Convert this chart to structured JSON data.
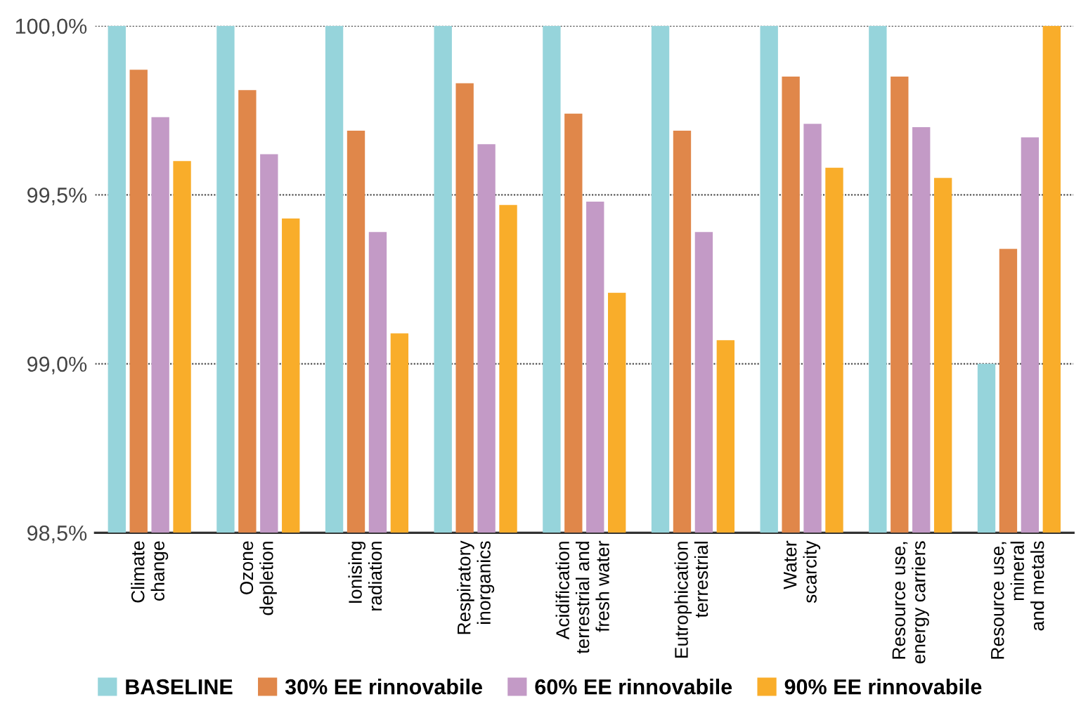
{
  "chart_data": {
    "type": "bar",
    "categories": [
      "Climate\nchange",
      "Ozone\ndepletion",
      "Ionising\nradiation",
      "Respiratory\ninorganics",
      "Acidification\nterrestrial and\nfresh water",
      "Eutrophication\nterrestrial",
      "Water\nscarcity",
      "Resource use,\nenergy carriers",
      "Resource use,\nmineral\nand metals"
    ],
    "series": [
      {
        "name": "BASELINE",
        "color": "#96d4db",
        "values": [
          100.0,
          100.0,
          100.0,
          100.0,
          100.0,
          100.0,
          100.0,
          100.0,
          99.0
        ]
      },
      {
        "name": "30% EE rinnovabile",
        "color": "#e0874a",
        "values": [
          99.87,
          99.81,
          99.69,
          99.83,
          99.74,
          99.69,
          99.85,
          99.85,
          99.34
        ]
      },
      {
        "name": "60% EE rinnovabile",
        "color": "#c39ac6",
        "values": [
          99.73,
          99.62,
          99.39,
          99.65,
          99.48,
          99.39,
          99.71,
          99.7,
          99.67
        ]
      },
      {
        "name": "90% EE rinnovabile",
        "color": "#f9ad2a",
        "values": [
          99.6,
          99.43,
          99.09,
          99.47,
          99.21,
          99.07,
          99.58,
          99.55,
          100.0
        ]
      }
    ],
    "ylim": [
      98.5,
      100.0
    ],
    "yticks": [
      {
        "value": 98.5,
        "label": "98,5%"
      },
      {
        "value": 99.0,
        "label": "99,0%"
      },
      {
        "value": 99.5,
        "label": "99,5%"
      },
      {
        "value": 100.0,
        "label": "100,0%"
      }
    ],
    "grid": "y",
    "legend": "bottom"
  }
}
